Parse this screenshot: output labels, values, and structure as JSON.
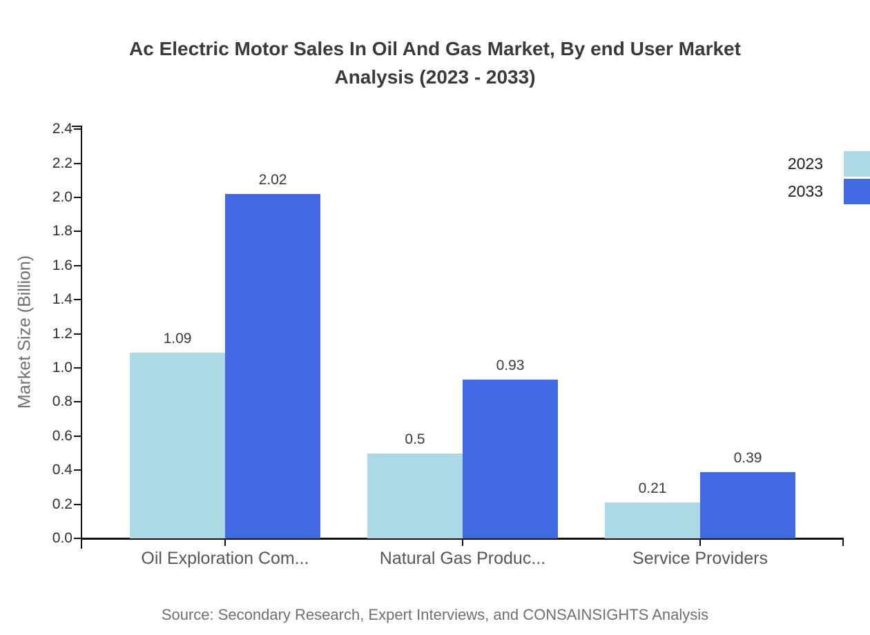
{
  "chart_data": {
    "type": "bar",
    "title": "Ac Electric Motor Sales In Oil And Gas Market, By end User Market Analysis (2023 - 2033)",
    "categories": [
      "Oil Exploration Com...",
      "Natural Gas Produc...",
      "Service Providers"
    ],
    "series": [
      {
        "name": "2023",
        "color": "#ADD8E6",
        "values": [
          1.09,
          0.5,
          0.21
        ],
        "labels": [
          "1.09",
          "0.5",
          "0.21"
        ]
      },
      {
        "name": "2033",
        "color": "#4169E1",
        "values": [
          2.02,
          0.93,
          0.39
        ],
        "labels": [
          "2.02",
          "0.93",
          "0.39"
        ]
      }
    ],
    "xlabel": "",
    "ylabel": "Market Size (Billion)",
    "ylim": [
      0,
      2.4
    ],
    "ytick_step": 0.2,
    "yticks": [
      "0.0",
      "0.2",
      "0.4",
      "0.6",
      "0.8",
      "1.0",
      "1.2",
      "1.4",
      "1.6",
      "1.8",
      "2.0",
      "2.2",
      "2.4"
    ],
    "grid": false,
    "legend_position": "top-right"
  },
  "source": {
    "text": "Source: Secondary Research, Expert Interviews, and CONSAINSIGHTS Analysis"
  },
  "colors": {
    "bar_2023": "#ADD8E6",
    "bar_2033": "#4169E1",
    "axis": "#111111",
    "title_text": "#3a3a3a",
    "tick_text": "#2e2e2e",
    "value_text": "#3a3a3a",
    "category_text": "#565656",
    "ylabel_text": "#717171",
    "source_text": "#6f6f6f"
  }
}
